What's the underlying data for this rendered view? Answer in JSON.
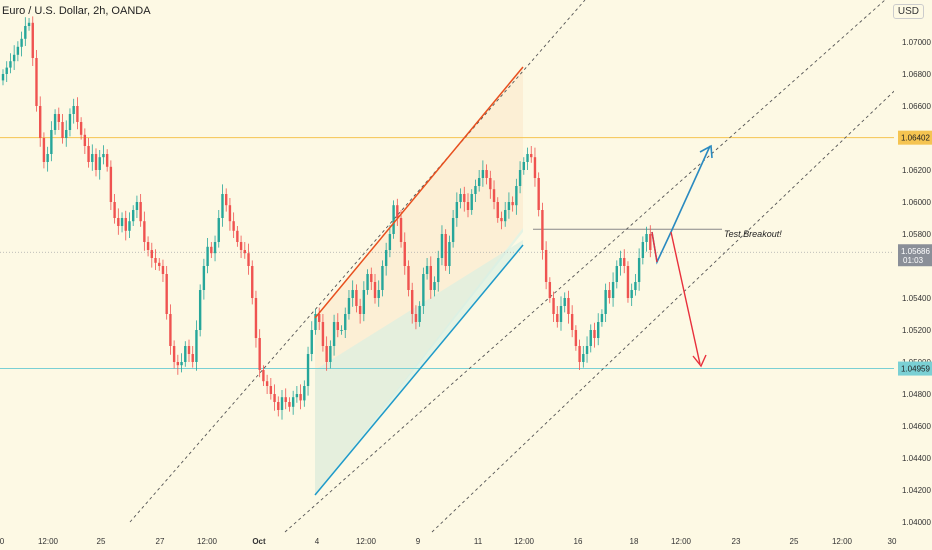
{
  "header": {
    "symbol_title": "Euro / U.S. Dollar, 2h, OANDA",
    "currency_button": "USD"
  },
  "colors": {
    "background": "#fdf9e4",
    "up_candle": "#26a69a",
    "down_candle": "#ef5350",
    "resistance_line": "#f5c451",
    "support_line": "#7ad0d4",
    "channel_top": "#e8501e",
    "channel_bottom": "#1e9ac9",
    "projection_up": "#2a8ac0",
    "projection_down": "#e8303c",
    "dotted_channel": "#555555"
  },
  "annotations": {
    "breakout_label": "Test Breakout!"
  },
  "price_axis": {
    "labels": [
      "1.07000",
      "1.06800",
      "1.06600",
      "1.06200",
      "1.06000",
      "1.05800",
      "1.05400",
      "1.05200",
      "1.05000",
      "1.04800",
      "1.04600",
      "1.04400",
      "1.04200",
      "1.04000"
    ],
    "badges": {
      "resistance": "1.06402",
      "current_price": "1.05686",
      "countdown": "01:03",
      "support": "1.04959"
    }
  },
  "time_axis": {
    "labels": [
      "0",
      "12:00",
      "25",
      "27",
      "12:00",
      "Oct",
      "4",
      "12:00",
      "9",
      "11",
      "12:00",
      "16",
      "18",
      "12:00",
      "23",
      "25",
      "12:00",
      "30"
    ]
  },
  "chart_data": {
    "type": "candlestick",
    "title": "Euro / U.S. Dollar, 2h, OANDA",
    "ylim": [
      1.0395,
      1.0725
    ],
    "horizontal_levels": [
      {
        "name": "resistance",
        "value": 1.06402
      },
      {
        "name": "support",
        "value": 1.04959
      },
      {
        "name": "breakout",
        "value": 1.0583
      },
      {
        "name": "current",
        "value": 1.05686
      }
    ],
    "grid": false,
    "series": [
      {
        "name": "close",
        "values": [
          1.068,
          1.0684,
          1.0688,
          1.0692,
          1.0697,
          1.0702,
          1.071,
          1.0712,
          1.069,
          1.066,
          1.064,
          1.0625,
          1.063,
          1.0645,
          1.0655,
          1.065,
          1.064,
          1.0645,
          1.0655,
          1.066,
          1.065,
          1.0642,
          1.0635,
          1.0625,
          1.063,
          1.062,
          1.0628,
          1.063,
          1.0622,
          1.06,
          1.059,
          1.0585,
          1.059,
          1.0582,
          1.0588,
          1.0595,
          1.06,
          1.0588,
          1.0575,
          1.057,
          1.0565,
          1.0562,
          1.056,
          1.0555,
          1.053,
          1.051,
          1.05,
          1.0498,
          1.05,
          1.051,
          1.0505,
          1.05,
          1.052,
          1.0545,
          1.056,
          1.0572,
          1.0568,
          1.0575,
          1.059,
          1.0605,
          1.0598,
          1.0588,
          1.0582,
          1.0575,
          1.057,
          1.0568,
          1.056,
          1.054,
          1.0515,
          1.0495,
          1.0488,
          1.0485,
          1.048,
          1.0475,
          1.047,
          1.0478,
          1.0475,
          1.0472,
          1.0478,
          1.048,
          1.0476,
          1.0485,
          1.0505,
          1.052,
          1.053,
          1.0525,
          1.051,
          1.05,
          1.051,
          1.0525,
          1.052,
          1.052,
          1.053,
          1.054,
          1.0545,
          1.0535,
          1.053,
          1.0545,
          1.0555,
          1.055,
          1.054,
          1.0545,
          1.056,
          1.057,
          1.058,
          1.0598,
          1.059,
          1.0575,
          1.056,
          1.0545,
          1.053,
          1.0525,
          1.0535,
          1.0555,
          1.056,
          1.0545,
          1.055,
          1.0565,
          1.058,
          1.056,
          1.0575,
          1.059,
          1.06,
          1.0605,
          1.06,
          1.0595,
          1.0605,
          1.061,
          1.0615,
          1.062,
          1.0615,
          1.0608,
          1.06,
          1.059,
          1.0588,
          1.0595,
          1.06,
          1.0598,
          1.061,
          1.062,
          1.0625,
          1.063,
          1.0628,
          1.0615,
          1.0595,
          1.057,
          1.055,
          1.054,
          1.053,
          1.0525,
          1.0535,
          1.054,
          1.053,
          1.052,
          1.051,
          1.05,
          1.0505,
          1.051,
          1.052,
          1.0515,
          1.0525,
          1.053,
          1.0545,
          1.054,
          1.055,
          1.056,
          1.0565,
          1.056,
          1.054,
          1.0545,
          1.055,
          1.0565,
          1.0575,
          1.058,
          1.057
        ]
      }
    ]
  }
}
